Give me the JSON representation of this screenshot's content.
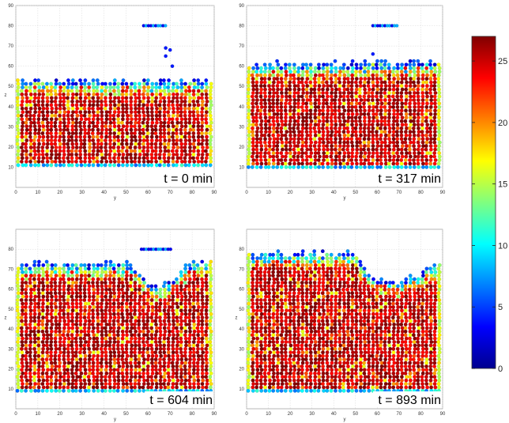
{
  "chart_data": {
    "type": "scatter",
    "description_colorbar": {
      "min": 0,
      "max": 27,
      "ticks": [
        0,
        5,
        10,
        15,
        20,
        25
      ],
      "colormap": "jet"
    },
    "panels": [
      {
        "time_label": "t = 0 min",
        "xlabel": "y",
        "ylabel": "z",
        "xlim": [
          0,
          90
        ],
        "ylim": [
          0,
          90
        ],
        "xticks": [
          0,
          10,
          20,
          30,
          40,
          50,
          60,
          70,
          80,
          90
        ],
        "yticks": [
          10,
          20,
          30,
          40,
          50,
          60,
          70,
          80,
          90
        ],
        "surface_profile": [
          [
            0,
            53
          ],
          [
            90,
            53
          ]
        ],
        "base_z": 11,
        "bar": {
          "y_start": 58,
          "y_end": 68,
          "z": 80
        },
        "extra_points": [
          [
            68,
            69
          ],
          [
            70,
            68
          ],
          [
            68,
            65
          ],
          [
            71,
            60
          ]
        ]
      },
      {
        "time_label": "t = 317 min",
        "xlabel": "y",
        "ylabel": "",
        "xlim": [
          0,
          90
        ],
        "ylim": [
          0,
          90
        ],
        "xticks": [
          0,
          10,
          20,
          30,
          40,
          50,
          60,
          70,
          80,
          90
        ],
        "yticks": [
          10,
          20,
          30,
          40,
          50,
          60,
          70,
          80,
          90
        ],
        "surface_profile": [
          [
            0,
            61
          ],
          [
            90,
            62
          ]
        ],
        "base_z": 10,
        "bar": {
          "y_start": 58,
          "y_end": 70,
          "z": 80
        },
        "extra_points": [
          [
            58,
            66
          ]
        ]
      },
      {
        "time_label": "t = 604 min",
        "xlabel": "y",
        "ylabel": "z",
        "xlim": [
          0,
          90
        ],
        "ylim": [
          0,
          90
        ],
        "xticks": [
          0,
          10,
          20,
          30,
          40,
          50,
          60,
          70,
          80,
          90
        ],
        "yticks": [
          10,
          20,
          30,
          40,
          50,
          60,
          70,
          80
        ],
        "surface_profile": [
          [
            0,
            73
          ],
          [
            50,
            73
          ],
          [
            55,
            70
          ],
          [
            60,
            63
          ],
          [
            65,
            61
          ],
          [
            70,
            63
          ],
          [
            75,
            70
          ],
          [
            80,
            73
          ],
          [
            90,
            73
          ]
        ],
        "base_z": 9,
        "bar": {
          "y_start": 57,
          "y_end": 71,
          "z": 80
        },
        "extra_points": []
      },
      {
        "time_label": "t = 893 min",
        "xlabel": "y",
        "ylabel": "z",
        "xlim": [
          0,
          90
        ],
        "ylim": [
          0,
          90
        ],
        "xticks": [
          0,
          10,
          20,
          30,
          40,
          50,
          60,
          70,
          80,
          90
        ],
        "yticks": [
          10,
          20,
          30,
          40,
          50,
          60,
          70,
          80
        ],
        "surface_profile": [
          [
            0,
            78
          ],
          [
            50,
            78
          ],
          [
            55,
            70
          ],
          [
            60,
            65
          ],
          [
            70,
            64
          ],
          [
            80,
            68
          ],
          [
            85,
            72
          ],
          [
            90,
            72
          ]
        ],
        "base_z": 9,
        "bar": null,
        "extra_points": []
      }
    ]
  }
}
